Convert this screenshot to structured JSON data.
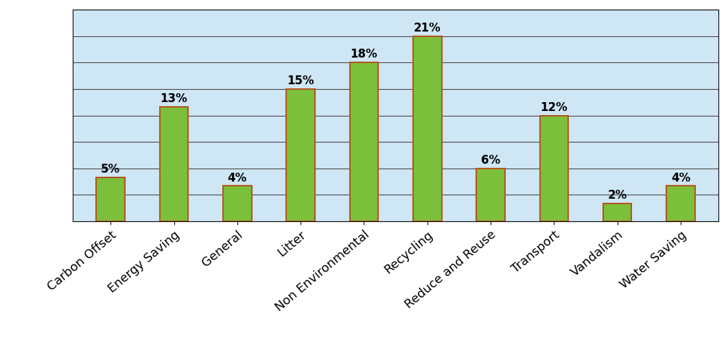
{
  "chart_data": {
    "type": "bar",
    "categories": [
      "Carbon Offset",
      "Energy Saving",
      "General",
      "Litter",
      "Non Environmental",
      "Recycling",
      "Reduce and Reuse",
      "Transport",
      "Vandalism",
      "Water Saving"
    ],
    "values": [
      5,
      13,
      4,
      15,
      18,
      21,
      6,
      12,
      2,
      4
    ],
    "value_labels": [
      "5%",
      "13%",
      "4%",
      "15%",
      "18%",
      "21%",
      "6%",
      "12%",
      "2%",
      "4%"
    ],
    "color": "#7cbf3a",
    "ylim": [
      0,
      24
    ],
    "yticks": [
      0,
      3,
      6,
      9,
      12,
      15,
      18,
      21,
      24
    ],
    "grid": true,
    "data_labels": true,
    "tick_labels": "x"
  }
}
